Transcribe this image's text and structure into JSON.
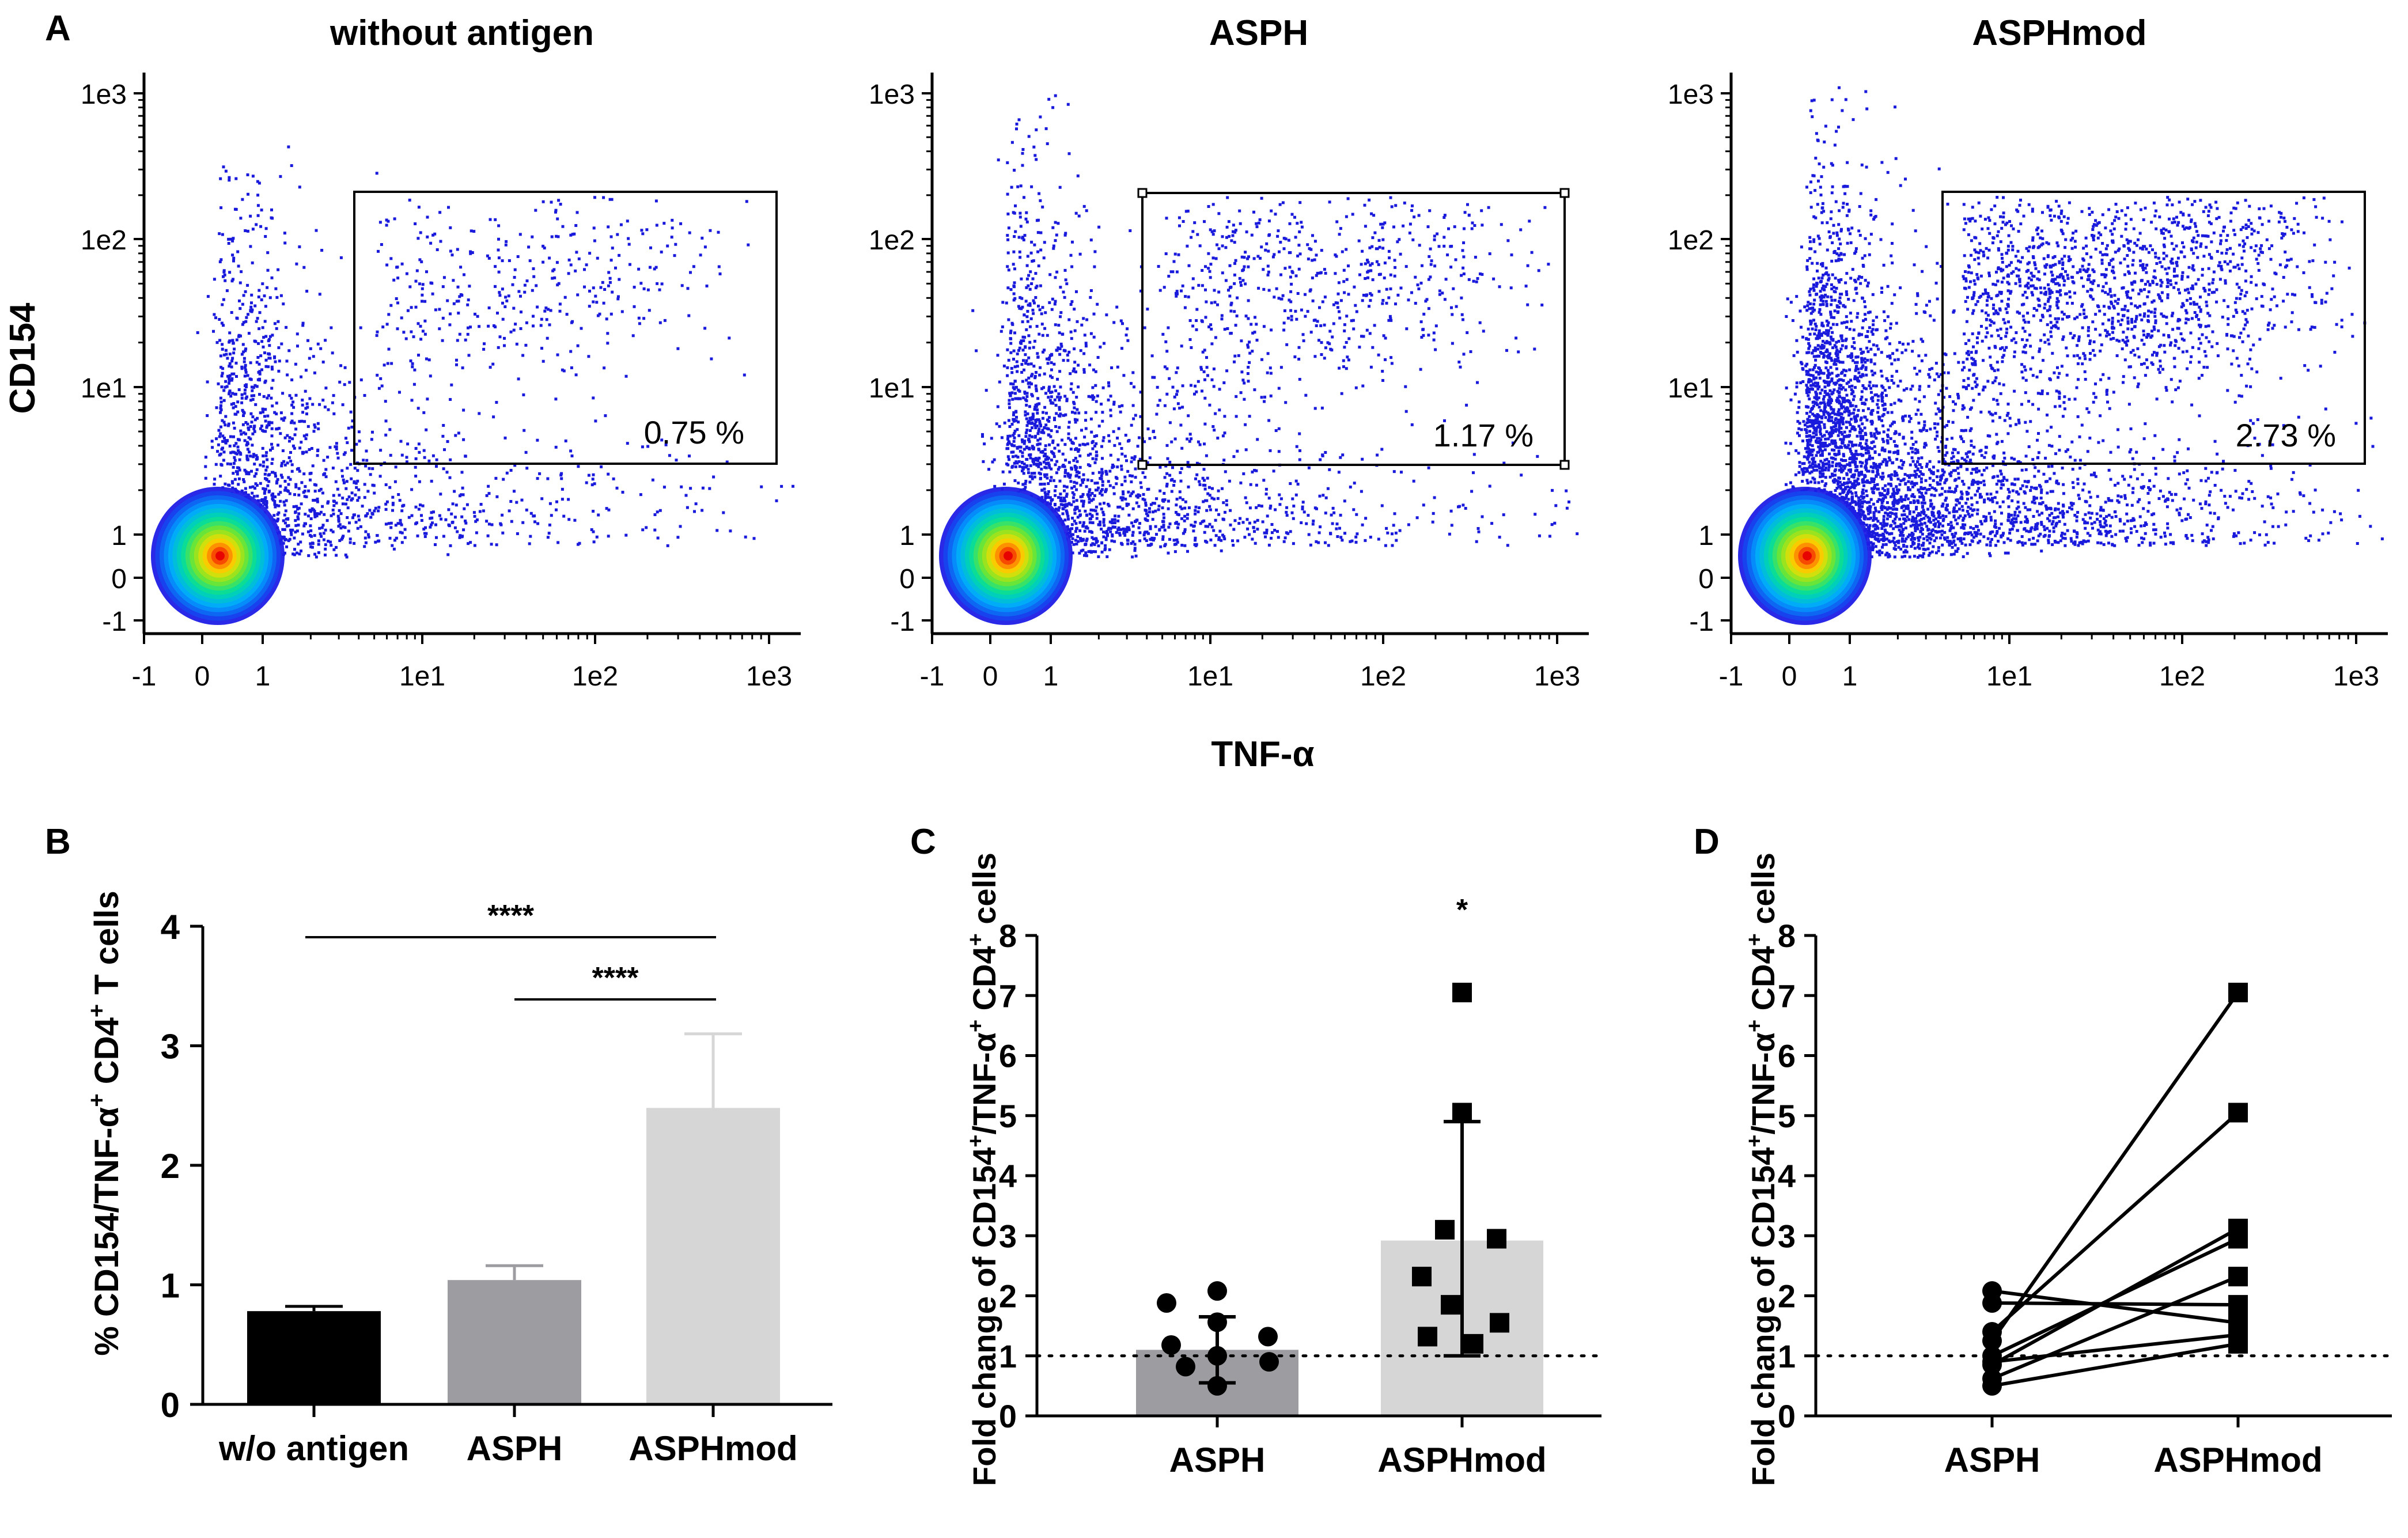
{
  "colors": {
    "dot_blue": "#1a1adc",
    "bar_black": "#000000",
    "bar_dark_gray": "#9c9ca1",
    "bar_light_gray": "#d6d6d6",
    "axis": "#000000"
  },
  "panel_labels": {
    "A": "A",
    "B": "B",
    "C": "C",
    "D": "D"
  },
  "chart_data": [
    {
      "id": "A",
      "type": "scatter",
      "ylabel": "CD154",
      "xlabel": "TNF-α",
      "x_ticks": [
        "-1",
        "0",
        "1",
        "1e1",
        "1e2",
        "1e3"
      ],
      "y_ticks": [
        "-1",
        "0",
        "1",
        "1e1",
        "1e2",
        "1e3"
      ],
      "panels": [
        {
          "title": "without antigen",
          "gate_percent": "0.75 %",
          "sparse_density": 1.0,
          "gate_density": 1.0
        },
        {
          "title": "ASPH",
          "gate_percent": "1.17 %",
          "sparse_density": 1.35,
          "gate_density": 1.6
        },
        {
          "title": "ASPHmod",
          "gate_percent": "2.73 %",
          "sparse_density": 2.6,
          "gate_density": 3.8
        }
      ]
    },
    {
      "id": "B",
      "type": "bar",
      "ylabel": "% CD154/TNF-α+ CD4+ T cells",
      "categories": [
        "w/o antigen",
        "ASPH",
        "ASPHmod"
      ],
      "values": [
        0.78,
        1.04,
        2.48
      ],
      "errors": [
        0.04,
        0.12,
        0.62
      ],
      "ylim": [
        0,
        4
      ],
      "y_ticks": [
        0,
        1,
        2,
        3,
        4
      ],
      "significance": [
        {
          "from": 0,
          "to": 2,
          "label": "****"
        },
        {
          "from": 1,
          "to": 2,
          "label": "****"
        }
      ]
    },
    {
      "id": "C",
      "type": "bar",
      "ylabel": "Fold change of CD154+/TNF-α+ CD4+ cells",
      "categories": [
        "ASPH",
        "ASPHmod"
      ],
      "values": [
        1.1,
        2.92
      ],
      "error_low": [
        0.55,
        1.0
      ],
      "error_high": [
        1.65,
        4.9
      ],
      "points": [
        [
          2.08,
          1.88,
          1.56,
          1.32,
          1.18,
          1.0,
          0.9,
          0.82,
          0.5
        ],
        [
          7.05,
          5.05,
          3.1,
          2.95,
          2.32,
          1.85,
          1.55,
          1.32,
          1.2
        ]
      ],
      "reference_line": 1,
      "ylim": [
        0,
        8
      ],
      "y_ticks": [
        0,
        1,
        2,
        3,
        4,
        5,
        6,
        7,
        8
      ],
      "significance_label": "*"
    },
    {
      "id": "D",
      "type": "line",
      "ylabel": "Fold change of CD154+/TNF-α+ CD4+ cells",
      "categories": [
        "ASPH",
        "ASPHmod"
      ],
      "pairs": [
        [
          1.25,
          7.05
        ],
        [
          1.4,
          5.05
        ],
        [
          0.85,
          3.12
        ],
        [
          1.0,
          2.95
        ],
        [
          0.62,
          2.32
        ],
        [
          1.88,
          1.85
        ],
        [
          2.08,
          1.55
        ],
        [
          0.9,
          1.35
        ],
        [
          0.5,
          1.2
        ]
      ],
      "reference_line": 1,
      "ylim": [
        0,
        8
      ],
      "y_ticks": [
        0,
        1,
        2,
        3,
        4,
        5,
        6,
        7,
        8
      ]
    }
  ]
}
